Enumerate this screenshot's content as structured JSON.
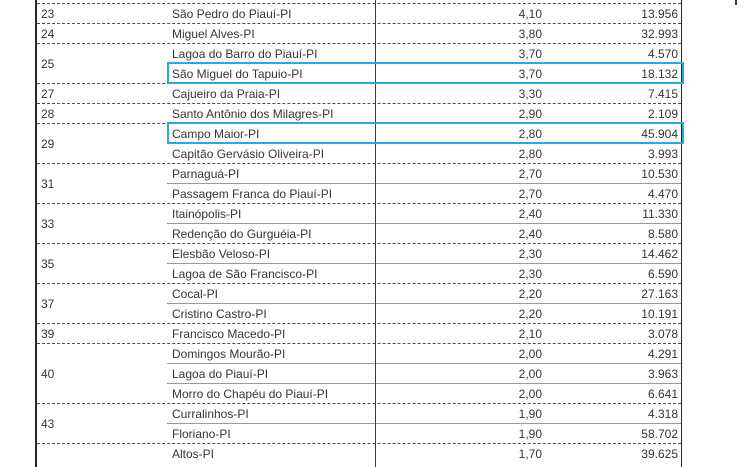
{
  "table": {
    "description": "Cropped ranking table of Piauí (PI) municipalities: rank, municipality name, index value, population",
    "highlight_color": "#29a9e0",
    "groups": [
      {
        "rank": "23",
        "rows": [
          {
            "name": "São Pedro do Piauí-PI",
            "value": "4,10",
            "population": "13.956",
            "highlighted": false
          }
        ]
      },
      {
        "rank": "24",
        "rows": [
          {
            "name": "Miguel Alves-PI",
            "value": "3,80",
            "population": "32.993",
            "highlighted": false
          }
        ]
      },
      {
        "rank": "25",
        "rows": [
          {
            "name": "Lagoa do Barro do Piauí-PI",
            "value": "3,70",
            "population": "4.570",
            "highlighted": false
          },
          {
            "name": "São Miguel do Tapuio-PI",
            "value": "3,70",
            "population": "18.132",
            "highlighted": true
          }
        ]
      },
      {
        "rank": "27",
        "rows": [
          {
            "name": "Cajueiro da Praia-PI",
            "value": "3,30",
            "population": "7.415",
            "highlighted": false
          }
        ]
      },
      {
        "rank": "28",
        "rows": [
          {
            "name": "Santo Antônio dos Milagres-PI",
            "value": "2,90",
            "population": "2.109",
            "highlighted": false
          }
        ]
      },
      {
        "rank": "29",
        "rows": [
          {
            "name": "Campo Maior-PI",
            "value": "2,80",
            "population": "45.904",
            "highlighted": true
          },
          {
            "name": "Capitão Gervásio Oliveira-PI",
            "value": "2,80",
            "population": "3.993",
            "highlighted": false
          }
        ]
      },
      {
        "rank": "31",
        "rows": [
          {
            "name": "Parnaguá-PI",
            "value": "2,70",
            "population": "10.530",
            "highlighted": false
          },
          {
            "name": "Passagem Franca do Piauí-PI",
            "value": "2,70",
            "population": "4.470",
            "highlighted": false
          }
        ]
      },
      {
        "rank": "33",
        "rows": [
          {
            "name": "Itainópolis-PI",
            "value": "2,40",
            "population": "11.330",
            "highlighted": false
          },
          {
            "name": "Redenção do Gurguéia-PI",
            "value": "2,40",
            "population": "8.580",
            "highlighted": false
          }
        ]
      },
      {
        "rank": "35",
        "rows": [
          {
            "name": "Elesbão Veloso-PI",
            "value": "2,30",
            "population": "14.462",
            "highlighted": false
          },
          {
            "name": "Lagoa de São Francisco-PI",
            "value": "2,30",
            "population": "6.590",
            "highlighted": false
          }
        ]
      },
      {
        "rank": "37",
        "rows": [
          {
            "name": "Cocal-PI",
            "value": "2,20",
            "population": "27.163",
            "highlighted": false
          },
          {
            "name": "Cristino Castro-PI",
            "value": "2,20",
            "population": "10.191",
            "highlighted": false
          }
        ]
      },
      {
        "rank": "39",
        "rows": [
          {
            "name": "Francisco Macedo-PI",
            "value": "2,10",
            "population": "3.078",
            "highlighted": false
          }
        ]
      },
      {
        "rank": "40",
        "rows": [
          {
            "name": "Domingos Mourão-PI",
            "value": "2,00",
            "population": "4.291",
            "highlighted": false
          },
          {
            "name": "Lagoa do Piauí-PI",
            "value": "2,00",
            "population": "3.963",
            "highlighted": false
          },
          {
            "name": "Morro do Chapéu do Piauí-PI",
            "value": "2,00",
            "population": "6.641",
            "highlighted": false
          }
        ]
      },
      {
        "rank": "43",
        "rows": [
          {
            "name": "Curralinhos-PI",
            "value": "1,90",
            "population": "4.318",
            "highlighted": false
          },
          {
            "name": "Floriano-PI",
            "value": "1,90",
            "population": "58.702",
            "highlighted": false
          }
        ]
      },
      {
        "rank": "",
        "rows": [
          {
            "name": "Altos-PI",
            "value": "1,70",
            "population": "39.625",
            "highlighted": false,
            "cutoff": true
          }
        ]
      }
    ]
  }
}
